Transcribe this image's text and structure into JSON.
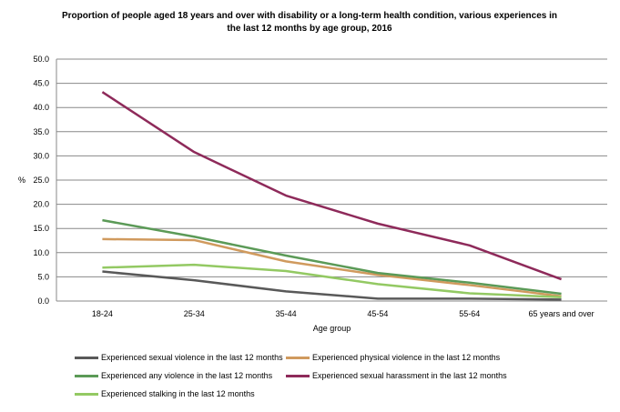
{
  "chart_data": {
    "type": "line",
    "title": "Proportion of people aged 18 years and over with disability or a long-term health condition, various experiences in the last 12 months by age group, 2016",
    "xlabel": "Age group",
    "ylabel": "%",
    "ylim": [
      0,
      50
    ],
    "yticks": [
      "0.0",
      "5.0",
      "10.0",
      "15.0",
      "20.0",
      "25.0",
      "30.0",
      "35.0",
      "40.0",
      "45.0",
      "50.0"
    ],
    "grid": true,
    "legend": "bottom",
    "categories": [
      "18-24",
      "25-34",
      "35-44",
      "45-54",
      "55-64",
      "65 years and over"
    ],
    "series": [
      {
        "name": "Experienced sexual violence in the last 12 months",
        "color": "#595959",
        "values": [
          6.1,
          4.3,
          2.0,
          0.5,
          0.5,
          0.3
        ]
      },
      {
        "name": "Experienced physical violence in the last 12 months",
        "color": "#d09a5e",
        "values": [
          12.8,
          12.6,
          8.2,
          5.4,
          3.3,
          1.0
        ]
      },
      {
        "name": "Experienced any violence in the last 12 months",
        "color": "#5b9a57",
        "values": [
          16.7,
          13.3,
          9.4,
          5.8,
          3.8,
          1.5
        ]
      },
      {
        "name": "Experienced sexual harassment in the last 12 months",
        "color": "#8e2a5a",
        "values": [
          43.2,
          30.8,
          21.8,
          16.0,
          11.5,
          4.5
        ]
      },
      {
        "name": "Experienced stalking in the last 12 months",
        "color": "#93c963",
        "values": [
          6.9,
          7.5,
          6.2,
          3.5,
          1.6,
          0.8
        ]
      }
    ]
  }
}
